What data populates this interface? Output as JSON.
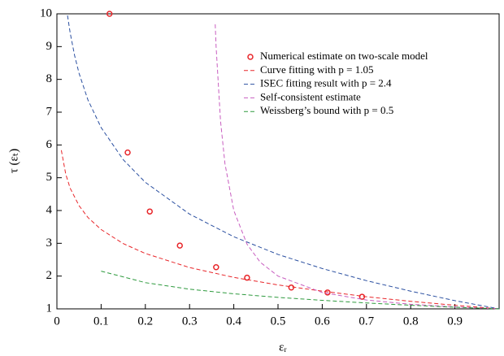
{
  "chart_data": {
    "type": "line",
    "xlabel": "εᵣ",
    "ylabel": "τ (εₜ)",
    "xlim": [
      0,
      1
    ],
    "ylim": [
      1,
      10
    ],
    "xticks": [
      0,
      0.1,
      0.2,
      0.3,
      0.4,
      0.5,
      0.6,
      0.7,
      0.8,
      0.9
    ],
    "yticks": [
      1,
      2,
      3,
      4,
      5,
      6,
      7,
      8,
      9,
      10
    ],
    "legend": "upper right",
    "series": [
      {
        "name": "Numerical estimate on two-scale model",
        "type": "scatter",
        "color": "#e8262a",
        "x": [
          0.119,
          0.16,
          0.21,
          0.278,
          0.36,
          0.43,
          0.53,
          0.612,
          0.69
        ],
        "values": [
          10,
          5.77,
          3.97,
          2.93,
          2.27,
          1.95,
          1.65,
          1.5,
          1.37
        ]
      },
      {
        "name": "Curve fitting with p = 1.05",
        "type": "line",
        "color": "#e8262a",
        "x": [
          0.01,
          0.02,
          0.03,
          0.05,
          0.07,
          0.1,
          0.15,
          0.2,
          0.3,
          0.4,
          0.5,
          0.6,
          0.7,
          0.8,
          0.9,
          1.0
        ],
        "values": [
          5.84,
          5.11,
          4.68,
          4.15,
          3.79,
          3.42,
          2.99,
          2.69,
          2.26,
          1.96,
          1.73,
          1.54,
          1.37,
          1.23,
          1.11,
          1.0
        ]
      },
      {
        "name": "ISEC fitting result with p = 2.4",
        "type": "line",
        "color": "#2a4fa0",
        "x": [
          0.024,
          0.03,
          0.04,
          0.05,
          0.07,
          0.1,
          0.15,
          0.2,
          0.3,
          0.4,
          0.5,
          0.6,
          0.7,
          0.8,
          0.9,
          1.0
        ],
        "values": [
          9.95,
          9.42,
          8.73,
          8.19,
          7.38,
          6.53,
          5.55,
          4.86,
          3.89,
          3.2,
          2.66,
          2.23,
          1.86,
          1.54,
          1.25,
          1.0
        ]
      },
      {
        "name": "Self-consistent estimate",
        "type": "line",
        "color": "#c85ec0",
        "x": [
          0.358,
          0.36,
          0.37,
          0.38,
          0.4,
          0.43,
          0.46,
          0.5,
          0.6,
          0.7,
          0.8,
          0.9,
          1.0
        ],
        "values": [
          9.68,
          9.0,
          6.73,
          5.43,
          4.0,
          2.97,
          2.42,
          2.0,
          1.5,
          1.27,
          1.14,
          1.06,
          1.0
        ]
      },
      {
        "name": "Weissberg’s bound with p = 0.5",
        "type": "line",
        "color": "#2e9a3e",
        "x": [
          0.1,
          0.2,
          0.3,
          0.4,
          0.5,
          0.6,
          0.7,
          0.8,
          0.9,
          1.0
        ],
        "values": [
          2.15,
          1.8,
          1.6,
          1.46,
          1.35,
          1.26,
          1.18,
          1.11,
          1.05,
          1.0
        ]
      }
    ]
  }
}
